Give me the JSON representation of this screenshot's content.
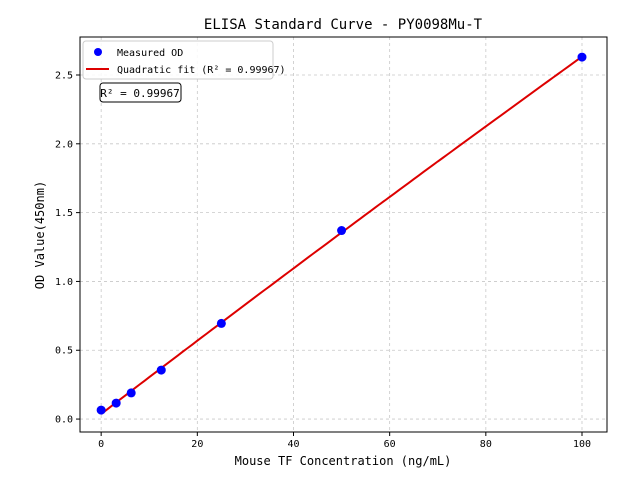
{
  "chart_data": {
    "type": "scatter",
    "title": "ELISA Standard Curve - PY0098Mu-T",
    "xlabel": "Mouse TF Concentration (ng/mL)",
    "ylabel": "OD Value(450nm)",
    "xlim": [
      -4.4,
      105.2
    ],
    "ylim": [
      -0.094,
      2.776
    ],
    "xticks": [
      0,
      20,
      40,
      60,
      80,
      100
    ],
    "yticks": [
      0.0,
      0.5,
      1.0,
      1.5,
      2.0,
      2.5
    ],
    "xtick_labels": [
      "0",
      "20",
      "40",
      "60",
      "80",
      "100"
    ],
    "ytick_labels": [
      "0.0",
      "0.5",
      "1.0",
      "1.5",
      "2.0",
      "2.5"
    ],
    "grid": true,
    "legend_placement": "top-left",
    "series": [
      {
        "name": "Measured OD",
        "kind": "points",
        "color": "#0000ff",
        "x": [
          0,
          3.125,
          6.25,
          12.5,
          25,
          50,
          100
        ],
        "y": [
          0.065,
          0.116,
          0.19,
          0.356,
          0.695,
          1.37,
          2.63
        ]
      },
      {
        "name": "Quadratic fit (R² = 0.99967)",
        "kind": "fit-line",
        "color": "#dd0000"
      }
    ],
    "annotation": "R² = 0.99967"
  }
}
